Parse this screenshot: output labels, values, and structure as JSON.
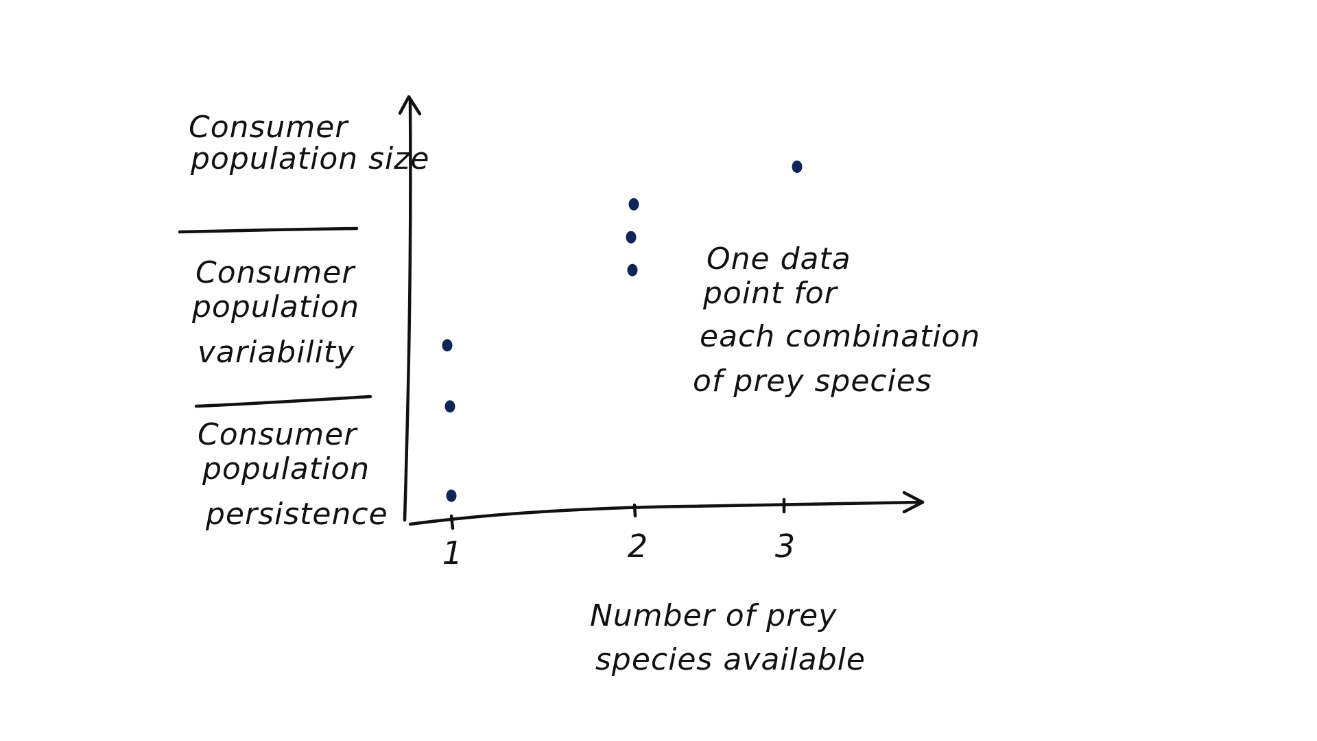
{
  "chart_data": {
    "type": "scatter",
    "title": "",
    "xlabel": [
      "Number of prey",
      "species available"
    ],
    "ylabels": [
      [
        "Consumer",
        "population size"
      ],
      [
        "Consumer",
        "population",
        "variability"
      ],
      [
        "Consumer",
        "population",
        "persistence"
      ]
    ],
    "x_ticks": [
      "1",
      "2",
      "3"
    ],
    "points": [
      {
        "x": 1,
        "level": 0.3
      },
      {
        "x": 1,
        "level": 0.49
      },
      {
        "x": 1,
        "level": 0.62
      },
      {
        "x": 2,
        "level": 0.78
      },
      {
        "x": 2,
        "level": 0.85
      },
      {
        "x": 2,
        "level": 0.92
      },
      {
        "x": 3,
        "level": 1.0
      }
    ],
    "point_color": "#0f2557",
    "annotation": [
      "One data",
      "point for",
      "each combination",
      "of prey species"
    ]
  }
}
